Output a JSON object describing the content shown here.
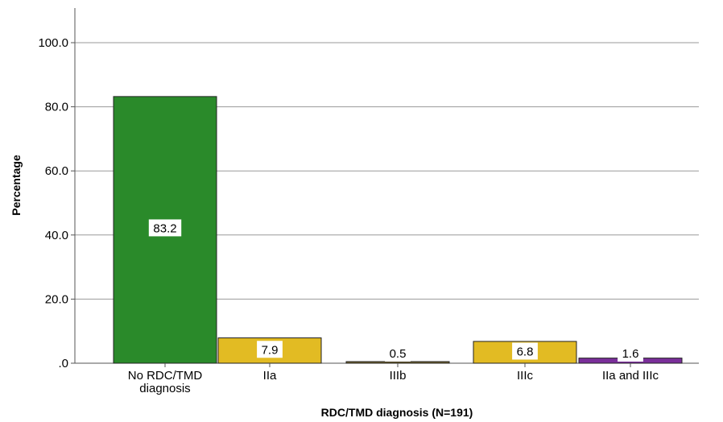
{
  "chart_data": {
    "type": "bar",
    "xlabel": "RDC/TMD diagnosis (N=191)",
    "ylabel": "Percentage",
    "ylim": [
      0,
      110
    ],
    "y_ticks": [
      0,
      20,
      40,
      60,
      80,
      100
    ],
    "y_tick_labels": [
      ".0",
      "20.0",
      "40.0",
      "60.0",
      "80.0",
      "100.0"
    ],
    "categories": [
      "No RDC/TMD\ndiagnosis",
      "IIa",
      "IIIb",
      "IIIc",
      "IIa and IIIc"
    ],
    "values": [
      83.2,
      7.9,
      0.5,
      6.8,
      1.6
    ],
    "data_labels": [
      "83.2",
      "7.9",
      "0.5",
      "6.8",
      "1.6"
    ],
    "colors": [
      "#2a8a2a",
      "#e2bb23",
      "#7b6a2e",
      "#e2bb23",
      "#7a2f9a"
    ],
    "grid": true,
    "legend": "none"
  }
}
